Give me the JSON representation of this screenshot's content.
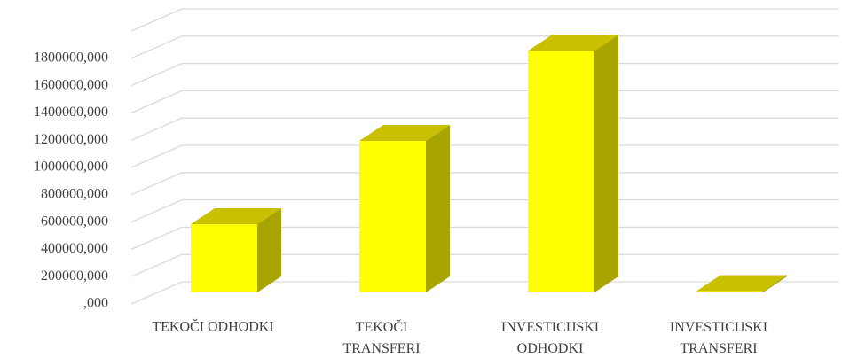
{
  "chart_data": {
    "type": "bar3d",
    "categories": [
      "TEKOČI ODHODKI",
      "TEKOČI TRANSFERI",
      "INVESTICIJSKI ODHODKI",
      "INVESTICIJSKI TRANSFERI"
    ],
    "values": [
      500000,
      1110000,
      1770000,
      10000
    ],
    "color": "#ffff00",
    "ylim": [
      0,
      2000000
    ],
    "yticks": [
      {
        "value": 0,
        "label": ",000"
      },
      {
        "value": 200000,
        "label": "200000,000"
      },
      {
        "value": 400000,
        "label": "400000,000"
      },
      {
        "value": 600000,
        "label": "600000,000"
      },
      {
        "value": 800000,
        "label": "800000,000"
      },
      {
        "value": 1000000,
        "label": "1000000,000"
      },
      {
        "value": 1200000,
        "label": "1200000,000"
      },
      {
        "value": 1400000,
        "label": "1400000,000"
      },
      {
        "value": 1600000,
        "label": "1600000,000"
      },
      {
        "value": 1800000,
        "label": "1800000,000"
      }
    ],
    "grid": true
  }
}
